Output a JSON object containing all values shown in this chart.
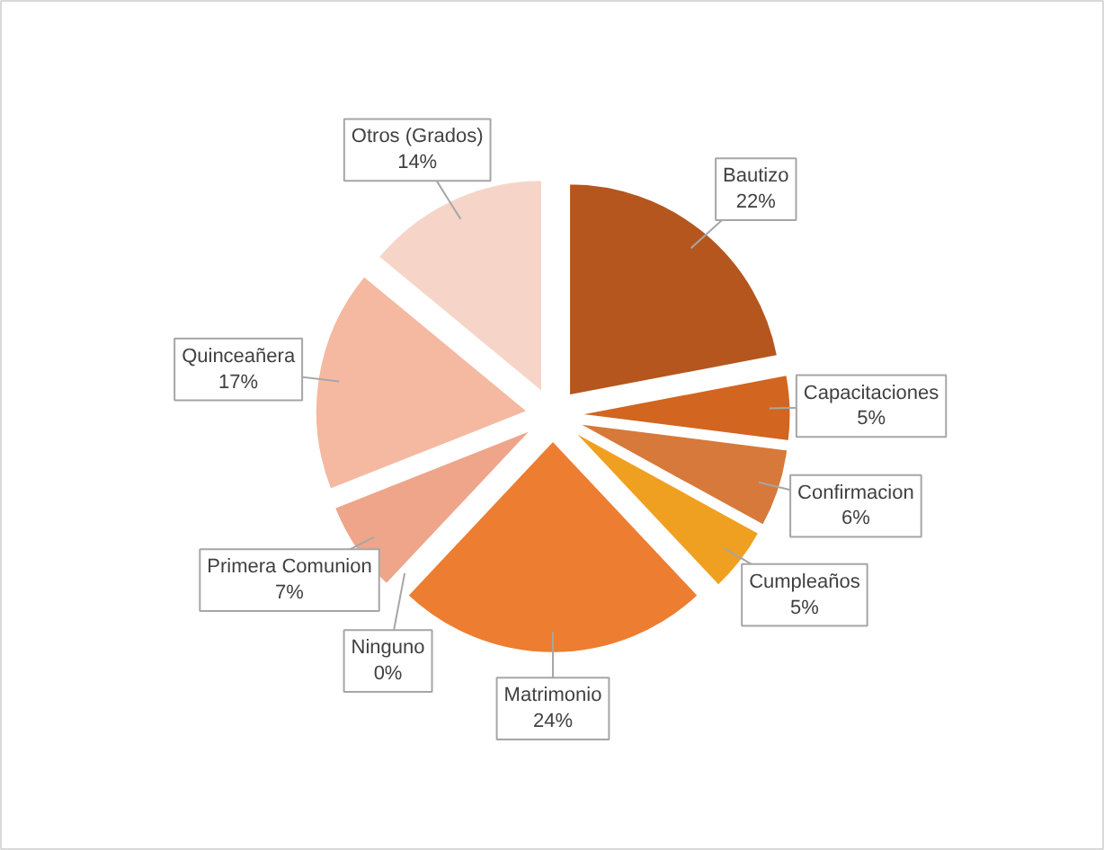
{
  "chart_data": {
    "type": "pie",
    "categories": [
      "Bautizo",
      "Capacitaciones",
      "Confirmacion",
      "Cumpleaños",
      "Matrimonio",
      "Ninguno",
      "Primera Comunion",
      "Quinceañera",
      "Otros (Grados)"
    ],
    "values": [
      22,
      5,
      6,
      5,
      24,
      0,
      7,
      17,
      14
    ],
    "value_labels": [
      "22%",
      "5%",
      "6%",
      "5%",
      "24%",
      "0%",
      "7%",
      "17%",
      "14%"
    ],
    "colors": [
      "#b5561f",
      "#d2651f",
      "#d7793a",
      "#f0a020",
      "#ed7d31",
      "#a9a9a9",
      "#eea58a",
      "#f4b9a0",
      "#f6d5c8"
    ]
  }
}
